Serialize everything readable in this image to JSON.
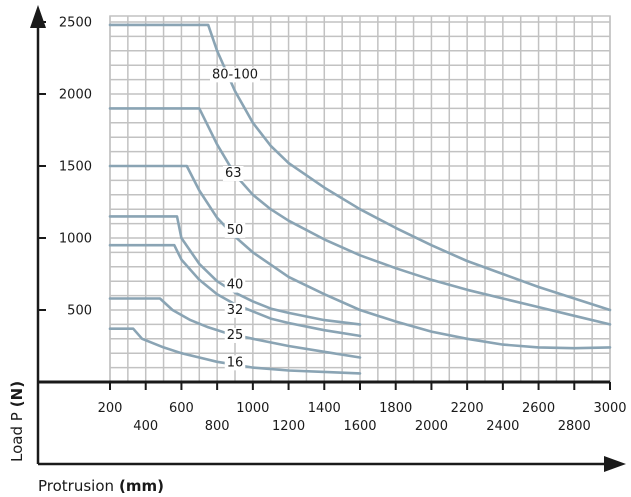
{
  "chart_data": {
    "type": "line",
    "xlabel": "Protrusion",
    "xlabel_unit": "(mm)",
    "ylabel": "Load P",
    "ylabel_unit": "(N)",
    "xlim": [
      200,
      3000
    ],
    "ylim": [
      0,
      2500
    ],
    "x_ticks_upper": [
      "200",
      "600",
      "1000",
      "1400",
      "1800",
      "2200",
      "2600",
      "3000"
    ],
    "x_ticks_lower": [
      "400",
      "800",
      "1200",
      "1600",
      "2000",
      "2400",
      "2800"
    ],
    "y_ticks": [
      "500",
      "1000",
      "1500",
      "2000",
      "2500"
    ],
    "grid": true,
    "line_color": "#8aa4b4",
    "series": [
      {
        "name": "80-100",
        "label_at": [
          900,
          2140
        ],
        "x": [
          200,
          750,
          800,
          900,
          1000,
          1100,
          1200,
          1400,
          1600,
          1800,
          2000,
          2200,
          2400,
          2600,
          2800,
          3000
        ],
        "y": [
          2480,
          2480,
          2300,
          2020,
          1800,
          1640,
          1520,
          1350,
          1200,
          1070,
          950,
          840,
          750,
          660,
          580,
          500
        ]
      },
      {
        "name": "63",
        "label_at": [
          890,
          1455
        ],
        "x": [
          200,
          700,
          800,
          900,
          1000,
          1100,
          1200,
          1400,
          1600,
          1800,
          2000,
          2200,
          2400,
          2600,
          2800,
          3000
        ],
        "y": [
          1900,
          1900,
          1650,
          1440,
          1300,
          1200,
          1120,
          990,
          880,
          790,
          710,
          640,
          580,
          520,
          460,
          400
        ]
      },
      {
        "name": "50",
        "label_at": [
          900,
          1060
        ],
        "x": [
          200,
          630,
          700,
          800,
          900,
          1000,
          1200,
          1400,
          1600,
          1800,
          2000,
          2200,
          2400,
          2600,
          2800,
          3000
        ],
        "y": [
          1500,
          1500,
          1330,
          1140,
          1010,
          900,
          730,
          610,
          500,
          420,
          350,
          300,
          260,
          240,
          235,
          240
        ]
      },
      {
        "name": "40",
        "label_at": [
          900,
          680
        ],
        "x": [
          200,
          575,
          600,
          700,
          800,
          900,
          1000,
          1100,
          1200,
          1400,
          1600
        ],
        "y": [
          1150,
          1150,
          1000,
          820,
          700,
          620,
          560,
          510,
          480,
          430,
          400
        ]
      },
      {
        "name": "32",
        "label_at": [
          900,
          505
        ],
        "x": [
          200,
          560,
          600,
          700,
          800,
          900,
          1000,
          1100,
          1200,
          1400,
          1600
        ],
        "y": [
          950,
          950,
          850,
          710,
          610,
          540,
          490,
          440,
          410,
          360,
          320
        ]
      },
      {
        "name": "25",
        "label_at": [
          900,
          330
        ],
        "x": [
          200,
          480,
          550,
          650,
          750,
          850,
          1000,
          1200,
          1400,
          1600
        ],
        "y": [
          580,
          580,
          500,
          430,
          380,
          340,
          300,
          250,
          210,
          170
        ]
      },
      {
        "name": "16",
        "label_at": [
          900,
          140
        ],
        "x": [
          200,
          330,
          380,
          500,
          600,
          700,
          800,
          900,
          1000,
          1200,
          1400,
          1600
        ],
        "y": [
          370,
          370,
          300,
          240,
          200,
          170,
          140,
          120,
          100,
          80,
          70,
          60
        ]
      }
    ]
  }
}
